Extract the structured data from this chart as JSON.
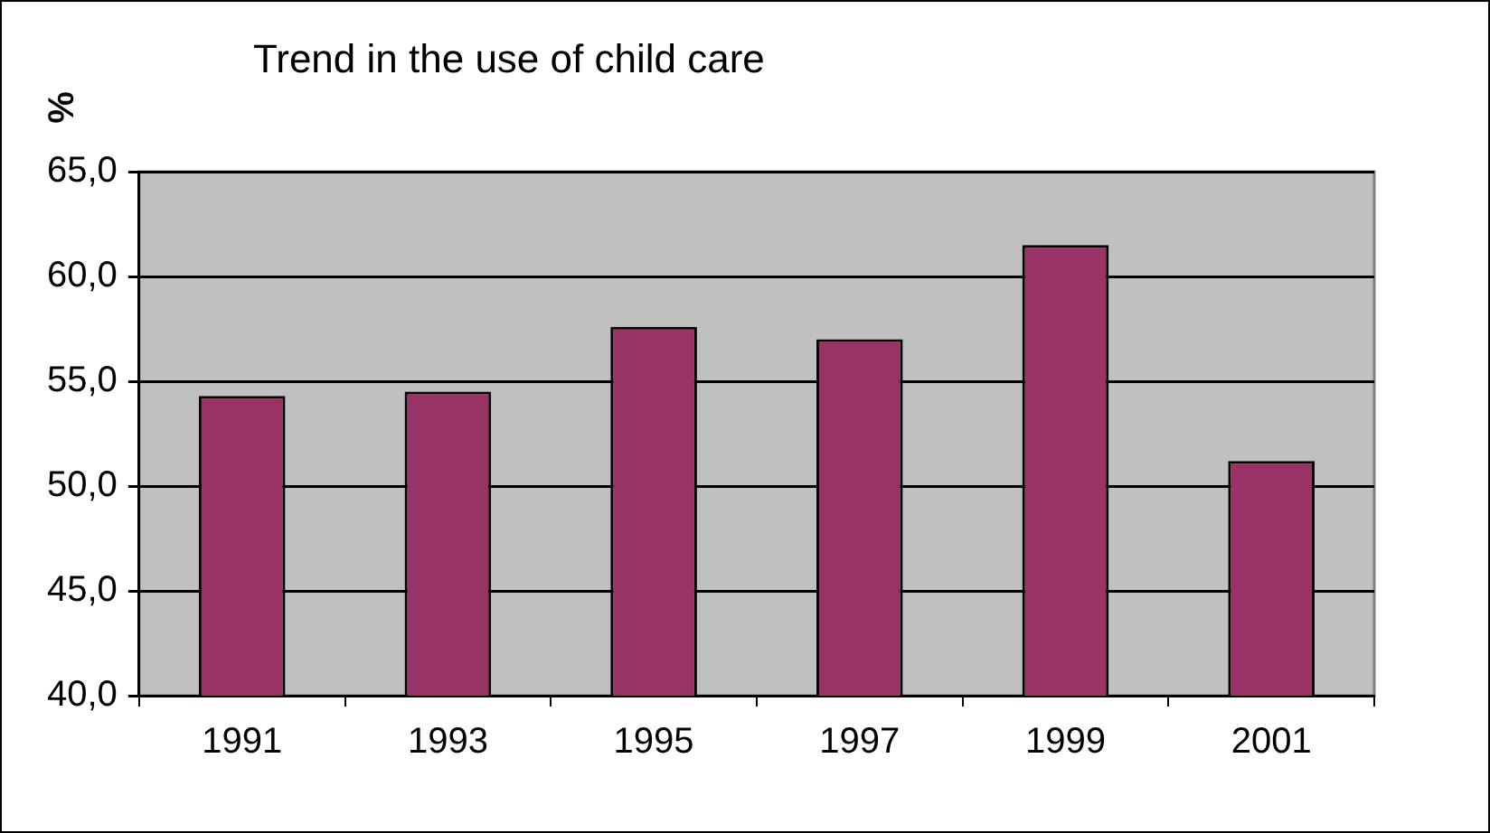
{
  "chart_data": {
    "type": "bar",
    "title": "Trend in the use of child care",
    "ylabel": "%",
    "categories": [
      "1991",
      "1993",
      "1995",
      "1997",
      "1999",
      "2001"
    ],
    "values": [
      54.3,
      54.5,
      57.6,
      57.0,
      61.5,
      51.2
    ],
    "color": "#993366",
    "ylim": [
      40,
      65
    ],
    "yticks": [
      {
        "value": 40,
        "label": "40,0"
      },
      {
        "value": 45,
        "label": "45,0"
      },
      {
        "value": 50,
        "label": "50,0"
      },
      {
        "value": 55,
        "label": "55,0"
      },
      {
        "value": 60,
        "label": "60,0"
      },
      {
        "value": 65,
        "label": "65,0"
      }
    ],
    "grid": "y",
    "legend": false
  }
}
